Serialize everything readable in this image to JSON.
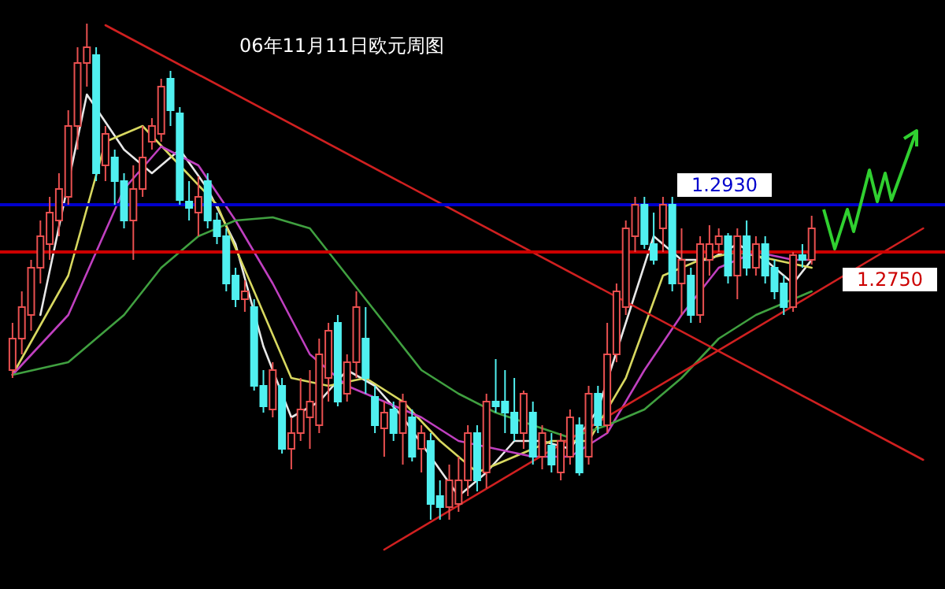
{
  "chart_data": {
    "type": "candlestick",
    "title": "06年11月11日欧元周图",
    "categories": [
      null,
      null,
      null,
      null,
      null,
      null,
      null,
      null,
      null,
      null,
      null,
      null,
      null,
      null,
      null,
      null,
      null,
      null,
      null,
      null,
      null,
      null,
      null,
      null,
      null,
      null,
      null,
      null,
      null,
      null,
      null,
      null,
      null,
      null,
      null,
      null,
      null,
      null,
      null,
      null,
      null,
      null,
      null,
      null,
      null,
      null,
      null,
      null,
      null,
      null,
      null,
      null,
      null,
      null,
      null,
      null,
      null,
      null,
      null,
      null,
      null,
      null,
      null,
      null,
      null,
      null,
      null,
      null,
      null,
      null,
      null,
      null,
      null,
      null,
      null,
      null,
      null,
      null,
      null,
      null,
      null,
      null,
      null,
      null,
      null,
      null,
      null,
      null,
      null,
      null,
      null,
      null,
      null,
      null,
      null,
      null,
      null,
      null,
      null,
      null
    ],
    "ohlc": [
      [
        1.23,
        1.248,
        1.227,
        1.242
      ],
      [
        1.242,
        1.26,
        1.236,
        1.254
      ],
      [
        1.251,
        1.272,
        1.245,
        1.269
      ],
      [
        1.269,
        1.287,
        1.263,
        1.281
      ],
      [
        1.278,
        1.296,
        1.272,
        1.29
      ],
      [
        1.287,
        1.305,
        1.281,
        1.299
      ],
      [
        1.296,
        1.329,
        1.293,
        1.323
      ],
      [
        1.323,
        1.353,
        1.314,
        1.347
      ],
      [
        1.347,
        1.362,
        1.338,
        1.353
      ],
      [
        1.35,
        1.353,
        1.302,
        1.305
      ],
      [
        1.308,
        1.323,
        1.302,
        1.32
      ],
      [
        1.311,
        1.314,
        1.293,
        1.302
      ],
      [
        1.302,
        1.305,
        1.284,
        1.287
      ],
      [
        1.287,
        1.308,
        1.272,
        1.299
      ],
      [
        1.299,
        1.323,
        1.296,
        1.311
      ],
      [
        1.317,
        1.326,
        1.314,
        1.323
      ],
      [
        1.32,
        1.341,
        1.317,
        1.338
      ],
      [
        1.341,
        1.344,
        1.323,
        1.329
      ],
      [
        1.3278,
        1.3302,
        1.293,
        1.2948
      ],
      [
        1.2942,
        1.302,
        1.287,
        1.2918
      ],
      [
        1.29,
        1.3038,
        1.281,
        1.296
      ],
      [
        1.302,
        1.305,
        1.284,
        1.287
      ],
      [
        1.287,
        1.29,
        1.278,
        1.281
      ],
      [
        1.281,
        1.284,
        1.26,
        1.263
      ],
      [
        1.266,
        1.269,
        1.254,
        1.257
      ],
      [
        1.257,
        1.2642,
        1.2522,
        1.26
      ],
      [
        1.254,
        1.257,
        1.2222,
        1.224
      ],
      [
        1.224,
        1.23,
        1.2138,
        1.2162
      ],
      [
        1.215,
        1.233,
        1.212,
        1.23
      ],
      [
        1.224,
        1.227,
        1.1982,
        1.2
      ],
      [
        1.2,
        1.212,
        1.1922,
        1.206
      ],
      [
        1.206,
        1.227,
        1.203,
        1.215
      ],
      [
        1.212,
        1.23,
        1.2,
        1.218
      ],
      [
        1.209,
        1.242,
        1.206,
        1.236
      ],
      [
        1.227,
        1.248,
        1.218,
        1.245
      ],
      [
        1.248,
        1.251,
        1.2162,
        1.218
      ],
      [
        1.221,
        1.236,
        1.218,
        1.233
      ],
      [
        1.233,
        1.26,
        1.227,
        1.254
      ],
      [
        1.242,
        1.254,
        1.221,
        1.227
      ],
      [
        1.2198,
        1.224,
        1.206,
        1.209
      ],
      [
        1.2078,
        1.218,
        1.197,
        1.2138
      ],
      [
        1.215,
        1.218,
        1.203,
        1.206
      ],
      [
        1.206,
        1.221,
        1.194,
        1.218
      ],
      [
        1.212,
        1.215,
        1.1952,
        1.197
      ],
      [
        1.2,
        1.209,
        1.191,
        1.206
      ],
      [
        1.203,
        1.206,
        1.173,
        1.179
      ],
      [
        1.182,
        1.188,
        1.173,
        1.1778
      ],
      [
        1.1778,
        1.194,
        1.173,
        1.188
      ],
      [
        1.179,
        1.197,
        1.176,
        1.188
      ],
      [
        1.188,
        1.209,
        1.182,
        1.206
      ],
      [
        1.206,
        1.209,
        1.1838,
        1.188
      ],
      [
        1.191,
        1.221,
        1.185,
        1.218
      ],
      [
        1.218,
        1.2342,
        1.2138,
        1.2162
      ],
      [
        1.218,
        1.23,
        1.206,
        1.2138
      ],
      [
        1.2138,
        1.227,
        1.203,
        1.206
      ],
      [
        1.206,
        1.2222,
        1.2,
        1.221
      ],
      [
        1.2138,
        1.218,
        1.194,
        1.197
      ],
      [
        1.197,
        1.209,
        1.1922,
        1.206
      ],
      [
        1.2012,
        1.206,
        1.191,
        1.194
      ],
      [
        1.191,
        1.206,
        1.188,
        1.203
      ],
      [
        1.197,
        1.215,
        1.194,
        1.212
      ],
      [
        1.209,
        1.212,
        1.1898,
        1.191
      ],
      [
        1.197,
        1.224,
        1.194,
        1.221
      ],
      [
        1.221,
        1.224,
        1.206,
        1.209
      ],
      [
        1.209,
        1.248,
        1.206,
        1.236
      ],
      [
        1.236,
        1.263,
        1.233,
        1.26
      ],
      [
        1.254,
        1.287,
        1.251,
        1.284
      ],
      [
        1.281,
        1.296,
        1.275,
        1.293
      ],
      [
        1.293,
        1.296,
        1.2762,
        1.278
      ],
      [
        1.278,
        1.29,
        1.2702,
        1.272
      ],
      [
        1.284,
        1.296,
        1.275,
        1.293
      ],
      [
        1.293,
        1.296,
        1.26,
        1.263
      ],
      [
        1.263,
        1.284,
        1.251,
        1.272
      ],
      [
        1.266,
        1.269,
        1.248,
        1.251
      ],
      [
        1.251,
        1.281,
        1.248,
        1.278
      ],
      [
        1.272,
        1.2852,
        1.266,
        1.278
      ],
      [
        1.278,
        1.284,
        1.275,
        1.281
      ],
      [
        1.281,
        1.2822,
        1.263,
        1.266
      ],
      [
        1.266,
        1.284,
        1.257,
        1.281
      ],
      [
        1.281,
        1.287,
        1.266,
        1.269
      ],
      [
        1.269,
        1.281,
        1.266,
        1.278
      ],
      [
        1.278,
        1.281,
        1.263,
        1.266
      ],
      [
        1.269,
        1.272,
        1.257,
        1.26
      ],
      [
        1.263,
        1.266,
        1.251,
        1.254
      ],
      [
        1.254,
        1.275,
        1.2522,
        1.2738
      ],
      [
        1.2738,
        1.278,
        1.269,
        1.272
      ],
      [
        1.272,
        1.2888,
        1.2702,
        1.284
      ],
      null,
      null,
      null,
      null,
      null,
      null,
      null,
      null,
      null,
      null,
      null,
      null,
      null
    ],
    "series": [
      {
        "type": "line",
        "color": "#e8e8e8",
        "values": [
          null,
          null,
          null,
          1.251,
          null,
          null,
          null,
          null,
          1.335,
          null,
          null,
          null,
          1.314,
          null,
          null,
          1.305,
          null,
          null,
          1.314,
          null,
          null,
          1.299,
          null,
          null,
          1.278,
          null,
          null,
          1.239,
          null,
          null,
          1.212,
          null,
          null,
          1.218,
          null,
          null,
          1.23,
          null,
          null,
          1.224,
          null,
          null,
          1.212,
          null,
          null,
          1.197,
          null,
          null,
          1.182,
          null,
          null,
          1.191,
          null,
          null,
          1.203,
          null,
          null,
          1.203,
          null,
          null,
          1.2,
          null,
          null,
          1.215,
          null,
          null,
          null,
          null,
          null,
          1.281,
          null,
          null,
          1.272,
          null,
          null,
          1.272,
          null,
          null,
          1.278,
          null,
          null,
          1.272,
          null,
          null,
          1.263,
          null,
          1.272,
          null,
          null,
          null,
          null,
          null,
          null,
          null,
          null,
          null,
          null,
          null,
          null,
          null
        ]
      },
      {
        "type": "line",
        "color": "#d8d860",
        "values": [
          1.2282,
          null,
          null,
          null,
          null,
          null,
          1.266,
          null,
          null,
          null,
          1.317,
          null,
          null,
          null,
          1.323,
          null,
          null,
          null,
          1.308,
          null,
          null,
          null,
          1.293,
          null,
          null,
          null,
          1.26,
          null,
          null,
          null,
          1.227,
          null,
          null,
          null,
          1.224,
          null,
          null,
          null,
          1.227,
          null,
          null,
          null,
          1.218,
          null,
          null,
          null,
          1.203,
          null,
          null,
          null,
          1.191,
          null,
          null,
          null,
          1.197,
          null,
          null,
          null,
          1.203,
          null,
          null,
          null,
          1.203,
          null,
          null,
          null,
          1.227,
          null,
          null,
          null,
          1.266,
          null,
          null,
          null,
          1.272,
          null,
          null,
          null,
          1.275,
          null,
          null,
          null,
          1.272,
          null,
          null,
          null,
          1.269,
          null,
          null,
          null,
          null,
          null,
          null,
          null,
          null,
          null,
          null,
          null,
          null,
          null
        ]
      },
      {
        "type": "line",
        "color": "#c040c0",
        "values": [
          1.2282,
          null,
          null,
          null,
          null,
          null,
          1.251,
          null,
          null,
          null,
          null,
          null,
          1.299,
          null,
          null,
          null,
          1.3152,
          null,
          null,
          null,
          1.308,
          null,
          null,
          null,
          1.287,
          null,
          null,
          null,
          1.263,
          null,
          null,
          null,
          1.236,
          null,
          null,
          null,
          1.224,
          null,
          null,
          null,
          1.218,
          null,
          null,
          null,
          1.212,
          null,
          null,
          null,
          1.203,
          null,
          null,
          null,
          1.2,
          null,
          null,
          null,
          1.197,
          null,
          null,
          null,
          1.197,
          null,
          null,
          null,
          1.206,
          null,
          null,
          null,
          1.23,
          null,
          null,
          null,
          1.251,
          null,
          null,
          null,
          1.269,
          null,
          null,
          null,
          1.275,
          null,
          null,
          null,
          1.272,
          null,
          1.272,
          null,
          null,
          null,
          null,
          null,
          null,
          null,
          null,
          null,
          null,
          null,
          null,
          null
        ]
      },
      {
        "type": "line",
        "color": "#40a040",
        "values": [
          1.2282,
          null,
          null,
          null,
          null,
          null,
          1.233,
          null,
          null,
          null,
          null,
          null,
          1.251,
          null,
          null,
          null,
          1.269,
          null,
          null,
          null,
          1.281,
          null,
          null,
          null,
          1.287,
          null,
          null,
          null,
          1.2882,
          null,
          null,
          null,
          1.284,
          null,
          null,
          null,
          1.266,
          null,
          null,
          null,
          1.248,
          null,
          null,
          null,
          1.23,
          null,
          null,
          null,
          1.221,
          null,
          null,
          null,
          1.2138,
          null,
          null,
          null,
          1.209,
          null,
          null,
          null,
          1.2042,
          null,
          null,
          null,
          1.209,
          null,
          null,
          null,
          1.215,
          null,
          null,
          null,
          1.227,
          null,
          null,
          null,
          1.242,
          null,
          null,
          null,
          1.251,
          null,
          null,
          null,
          1.257,
          null,
          1.26,
          null,
          null,
          null,
          null,
          null,
          null,
          null,
          null,
          null,
          null,
          null,
          null,
          null
        ]
      },
      {
        "type": "line",
        "color": "#d02020",
        "values": [
          null,
          null,
          null,
          null,
          null,
          null,
          null,
          null,
          null,
          null,
          1.3614,
          null,
          null,
          null,
          null,
          null,
          null,
          null,
          null,
          null,
          null,
          null,
          null,
          null,
          null,
          null,
          null,
          null,
          null,
          null,
          null,
          null,
          null,
          null,
          null,
          null,
          null,
          null,
          null,
          null,
          null,
          null,
          null,
          null,
          null,
          null,
          null,
          null,
          null,
          null,
          null,
          null,
          null,
          null,
          null,
          null,
          null,
          null,
          null,
          null,
          null,
          null,
          null,
          null,
          null,
          null,
          null,
          null,
          null,
          null,
          null,
          null,
          null,
          null,
          null,
          null,
          null,
          null,
          null,
          null,
          null,
          null,
          null,
          null,
          null,
          null,
          null,
          null,
          null,
          null,
          null,
          null,
          null,
          null,
          null,
          null,
          null,
          null,
          1.1958,
          null
        ]
      },
      {
        "type": "line",
        "color": "#d02020",
        "values": [
          null,
          null,
          null,
          null,
          null,
          null,
          null,
          null,
          null,
          null,
          null,
          null,
          null,
          null,
          null,
          null,
          null,
          null,
          null,
          null,
          null,
          null,
          null,
          null,
          null,
          null,
          null,
          null,
          null,
          null,
          null,
          null,
          null,
          null,
          null,
          null,
          null,
          null,
          null,
          null,
          1.1616,
          null,
          null,
          null,
          null,
          null,
          null,
          null,
          null,
          null,
          null,
          null,
          null,
          null,
          null,
          null,
          null,
          null,
          null,
          null,
          null,
          null,
          null,
          null,
          null,
          null,
          null,
          null,
          null,
          null,
          null,
          null,
          null,
          null,
          null,
          null,
          null,
          null,
          null,
          null,
          null,
          null,
          null,
          null,
          null,
          null,
          null,
          null,
          null,
          null,
          null,
          null,
          null,
          null,
          null,
          null,
          null,
          null,
          1.284,
          null
        ]
      }
    ],
    "ylim": [
      1.1466,
      1.371
    ],
    "ref_lines": [
      {
        "axis": "y",
        "value": 1.293,
        "label": "1.2930",
        "color": "#0000cc"
      },
      {
        "axis": "y",
        "value": 1.275,
        "label": "1.2750",
        "color": "#cc0000"
      }
    ],
    "tick_labels": false
  }
}
